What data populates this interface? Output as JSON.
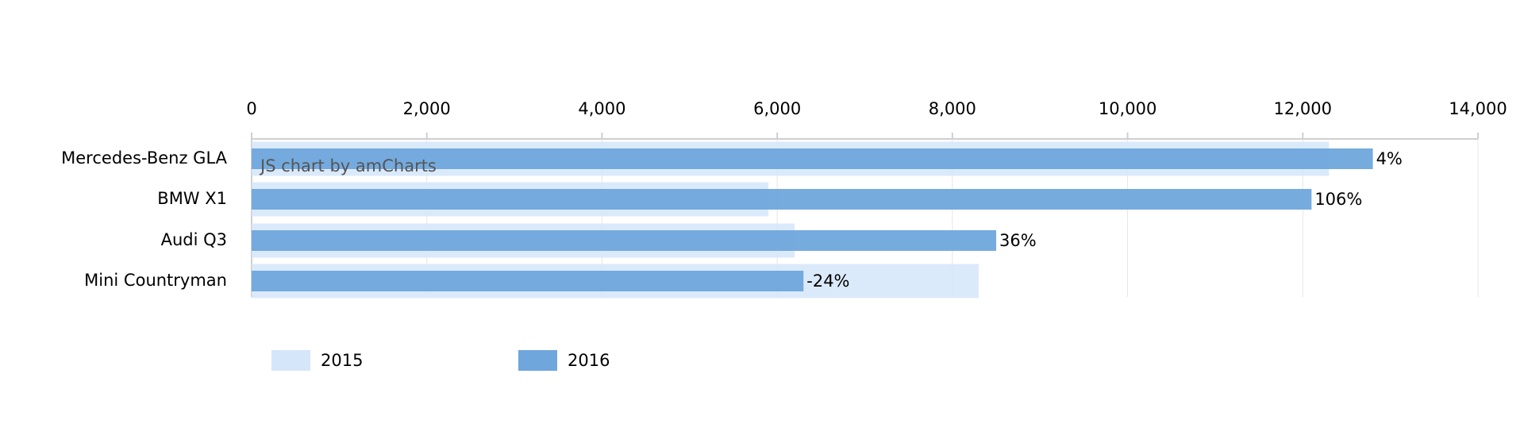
{
  "chart_data": {
    "type": "bar",
    "orientation": "horizontal",
    "categories": [
      "Mercedes-Benz GLA",
      "BMW X1",
      "Audi Q3",
      "Mini Countryman"
    ],
    "series": [
      {
        "name": "2015",
        "color": "#d5e6fa",
        "values": [
          12300,
          5900,
          6200,
          8300
        ]
      },
      {
        "name": "2016",
        "color": "#6fa6dc",
        "values": [
          12800,
          12100,
          8500,
          6300
        ]
      }
    ],
    "bar_labels": [
      "4%",
      "106%",
      "36%",
      "-24%"
    ],
    "credit": "JS chart by amCharts",
    "xlim": [
      0,
      14000
    ],
    "xticks": [
      0,
      {
        "value": 2000,
        "label": "2,000"
      },
      {
        "value": 4000,
        "label": "4,000"
      },
      {
        "value": 6000,
        "label": "6,000"
      },
      {
        "value": 8000,
        "label": "8,000"
      },
      {
        "value": 10000,
        "label": "10,000"
      },
      {
        "value": 12000,
        "label": "12,000"
      },
      {
        "value": 14000,
        "label": "14,000"
      }
    ],
    "grid": true,
    "legend": "bottom"
  }
}
